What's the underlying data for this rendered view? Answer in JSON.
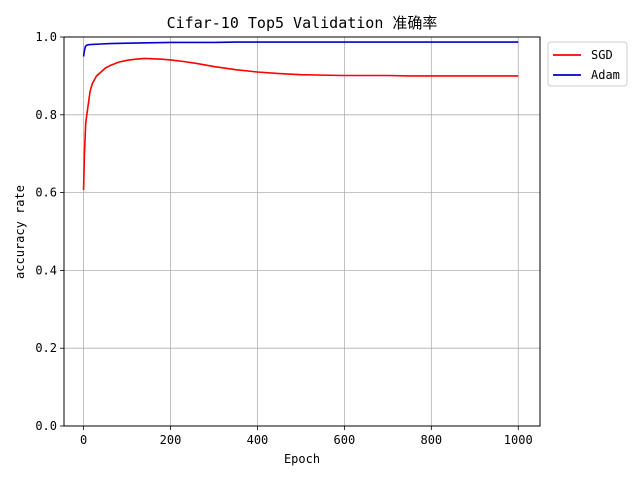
{
  "chart_data": {
    "type": "line",
    "title": "Cifar-10 Top5 Validation 准确率",
    "xlabel": "Epoch",
    "ylabel": "accuracy rate",
    "xlim": [
      -45,
      1050
    ],
    "ylim": [
      0.0,
      1.0
    ],
    "xticks": [
      0,
      200,
      400,
      600,
      800,
      1000
    ],
    "xtick_labels": [
      "0",
      "200",
      "400",
      "600",
      "800",
      "1000"
    ],
    "yticks": [
      0.0,
      0.2,
      0.4,
      0.6,
      0.8,
      1.0
    ],
    "ytick_labels": [
      "0.0",
      "0.2",
      "0.4",
      "0.6",
      "0.8",
      "1.0"
    ],
    "grid": true,
    "legend_position": "upper-right-outside",
    "series": [
      {
        "name": "SGD",
        "color": "#ff0000",
        "x": [
          0,
          2,
          5,
          10,
          15,
          20,
          30,
          40,
          50,
          60,
          80,
          100,
          120,
          140,
          160,
          180,
          200,
          230,
          260,
          300,
          350,
          400,
          450,
          500,
          550,
          600,
          650,
          700,
          750,
          800,
          850,
          900,
          950,
          1000
        ],
        "values": [
          0.607,
          0.7,
          0.78,
          0.82,
          0.86,
          0.88,
          0.9,
          0.91,
          0.92,
          0.926,
          0.935,
          0.94,
          0.943,
          0.945,
          0.944,
          0.943,
          0.941,
          0.937,
          0.932,
          0.924,
          0.916,
          0.91,
          0.906,
          0.903,
          0.902,
          0.901,
          0.901,
          0.901,
          0.9,
          0.9,
          0.9,
          0.9,
          0.9,
          0.9
        ]
      },
      {
        "name": "Adam",
        "color": "#0000cd",
        "x": [
          0,
          2,
          4,
          6,
          10,
          20,
          40,
          60,
          100,
          150,
          200,
          250,
          300,
          350,
          400,
          450,
          500,
          550,
          600,
          650,
          700,
          750,
          800,
          850,
          900,
          950,
          1000
        ],
        "values": [
          0.95,
          0.965,
          0.975,
          0.978,
          0.98,
          0.981,
          0.982,
          0.983,
          0.984,
          0.985,
          0.986,
          0.986,
          0.986,
          0.987,
          0.987,
          0.987,
          0.987,
          0.987,
          0.987,
          0.987,
          0.987,
          0.987,
          0.987,
          0.987,
          0.987,
          0.987,
          0.987
        ]
      }
    ]
  }
}
